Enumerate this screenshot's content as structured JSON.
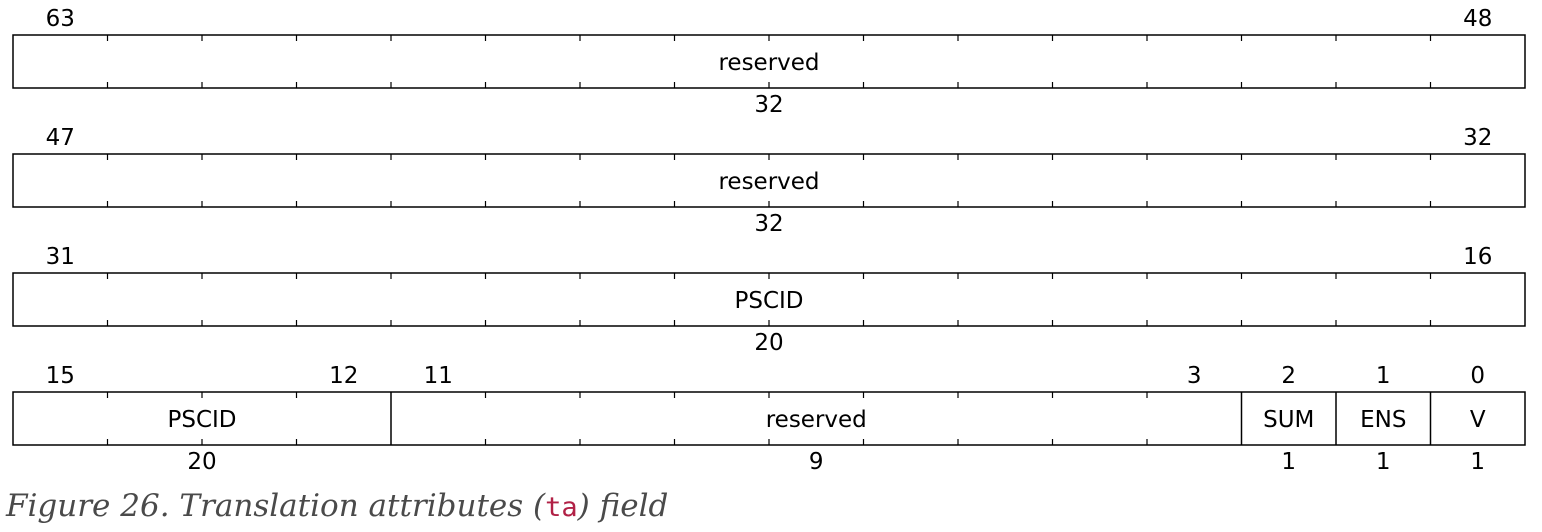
{
  "registers": [
    {
      "msb": "63",
      "lsb": "48",
      "fields": [
        {
          "name": "reserved",
          "width": "32",
          "hi": 63,
          "lo": 48
        }
      ]
    },
    {
      "msb": "47",
      "lsb": "32",
      "fields": [
        {
          "name": "reserved",
          "width": "32",
          "hi": 47,
          "lo": 32
        }
      ]
    },
    {
      "msb": "31",
      "lsb": "16",
      "fields": [
        {
          "name": "PSCID",
          "width": "20",
          "hi": 31,
          "lo": 16
        }
      ]
    },
    {
      "msb": "15",
      "lsb": "0",
      "fields": [
        {
          "name": "PSCID",
          "width": "20",
          "hi": 15,
          "lo": 12,
          "hi_label": "15",
          "lo_label": "12"
        },
        {
          "name": "reserved",
          "width": "9",
          "hi": 11,
          "lo": 3,
          "hi_label": "11",
          "lo_label": "3"
        },
        {
          "name": "SUM",
          "width": "1",
          "hi": 2,
          "lo": 2,
          "hi_label": "2"
        },
        {
          "name": "ENS",
          "width": "1",
          "hi": 1,
          "lo": 1,
          "hi_label": "1"
        },
        {
          "name": "V",
          "width": "1",
          "hi": 0,
          "lo": 0,
          "hi_label": "0"
        }
      ]
    }
  ],
  "caption": {
    "prefix": "Figure 26. Translation attributes (",
    "code": "ta",
    "suffix": ") field"
  }
}
